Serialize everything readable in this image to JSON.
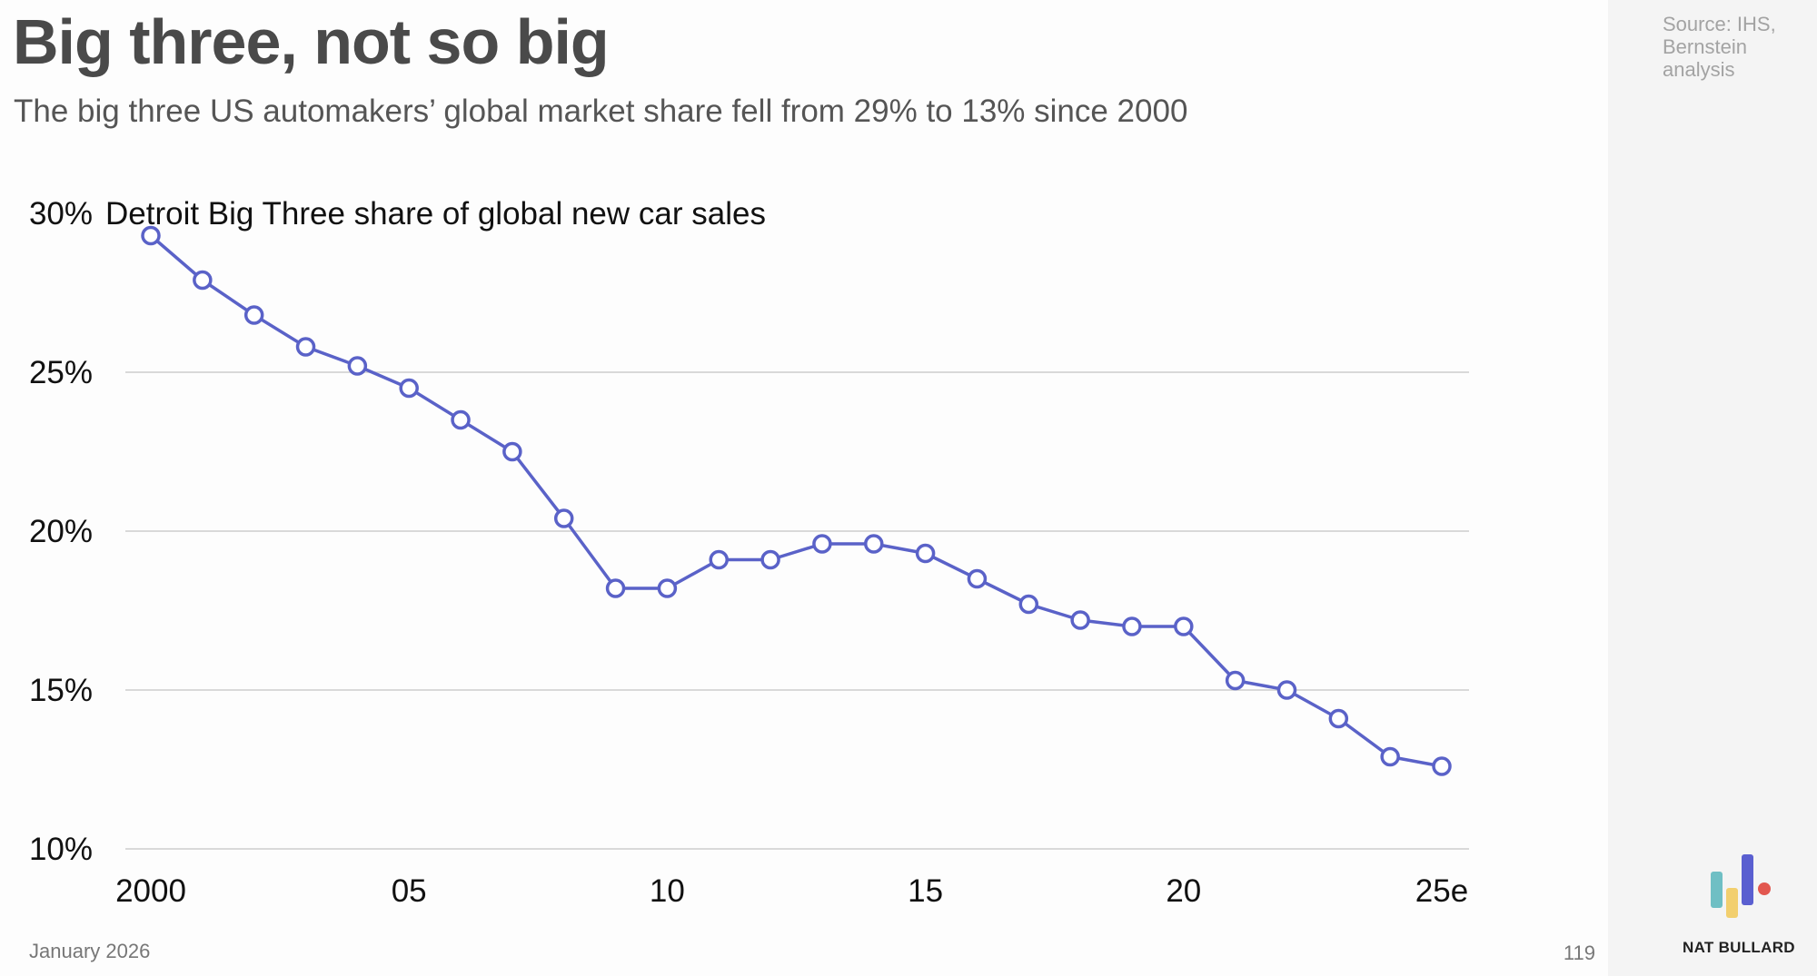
{
  "header": {
    "title": "Big three, not so big",
    "subtitle": "The big three US automakers’ global market share fell from 29% to 13% since 2000"
  },
  "side": {
    "source": "Source: IHS, Bernstein analysis",
    "brand": "NAT BULLARD",
    "logo_colors": [
      "#6fbfc4",
      "#f2cf6e",
      "#5a5fd0",
      "#e2574f"
    ]
  },
  "footer": {
    "date": "January 2026",
    "page": "119"
  },
  "chart_data": {
    "type": "line",
    "title": "Detroit Big Three share of global new car sales",
    "xlabel": "",
    "ylabel": "",
    "x": [
      2000,
      2001,
      2002,
      2003,
      2004,
      2005,
      2006,
      2007,
      2008,
      2009,
      2010,
      2011,
      2012,
      2013,
      2014,
      2015,
      2016,
      2017,
      2018,
      2019,
      2020,
      2021,
      2022,
      2023,
      2024,
      2025
    ],
    "series": [
      {
        "name": "Detroit Big Three share of global new car sales",
        "color": "#5a62c8",
        "values": [
          29.3,
          27.9,
          26.8,
          25.8,
          25.2,
          24.5,
          23.5,
          22.5,
          20.4,
          18.2,
          18.2,
          19.1,
          19.1,
          19.6,
          19.6,
          19.3,
          18.5,
          17.7,
          17.2,
          17.0,
          17.0,
          15.3,
          15.0,
          14.1,
          12.9,
          12.6
        ]
      }
    ],
    "ylim": [
      10,
      30
    ],
    "xlim": [
      2000,
      2025
    ],
    "y_ticks": [
      {
        "value": 10,
        "label": "10%"
      },
      {
        "value": 15,
        "label": "15%"
      },
      {
        "value": 20,
        "label": "20%"
      },
      {
        "value": 25,
        "label": "25%"
      },
      {
        "value": 30,
        "label": "30%"
      }
    ],
    "x_ticks": [
      {
        "value": 2000,
        "label": "2000"
      },
      {
        "value": 2005,
        "label": "05"
      },
      {
        "value": 2010,
        "label": "10"
      },
      {
        "value": 2015,
        "label": "15"
      },
      {
        "value": 2020,
        "label": "20"
      },
      {
        "value": 2025,
        "label": "25e"
      }
    ],
    "grid": true,
    "gridline_color": "#d9d9d9",
    "legend": "none",
    "markers": "open-circle"
  }
}
